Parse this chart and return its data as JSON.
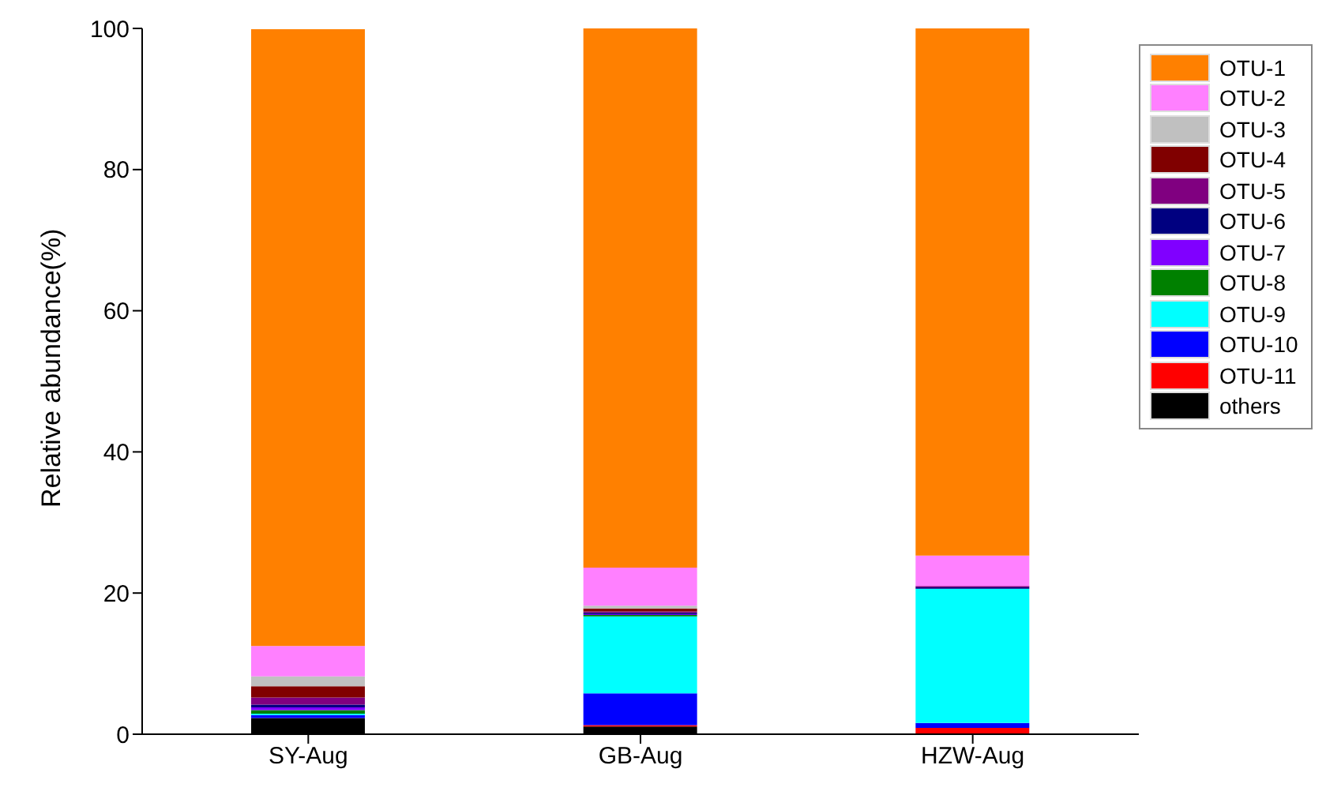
{
  "chart_data": {
    "type": "bar",
    "stacked": true,
    "ylabel": "Relative abundance(%)",
    "categories": [
      "SY-Aug",
      "GB-Aug",
      "HZW-Aug"
    ],
    "ylim": [
      0,
      100
    ],
    "yticks": [
      0,
      20,
      40,
      60,
      80,
      100
    ],
    "legend": "right",
    "series": [
      {
        "name": "others",
        "color": "#000000",
        "values": [
          2.3,
          1.1,
          0.1
        ]
      },
      {
        "name": "OTU-11",
        "color": "#ff0000",
        "values": [
          null,
          0.2,
          0.8
        ]
      },
      {
        "name": "OTU-10",
        "color": "#0000ff",
        "values": [
          0.4,
          4.5,
          0.7
        ]
      },
      {
        "name": "OTU-9",
        "color": "#00ffff",
        "values": [
          0.2,
          10.9,
          19.0
        ]
      },
      {
        "name": "OTU-8",
        "color": "#008000",
        "values": [
          0.5,
          0.2,
          0
        ]
      },
      {
        "name": "OTU-7",
        "color": "#8000ff",
        "values": [
          0.4,
          0.1,
          0
        ]
      },
      {
        "name": "OTU-6",
        "color": "#000080",
        "values": [
          0.4,
          0.2,
          0.2
        ]
      },
      {
        "name": "OTU-5",
        "color": "#800080",
        "values": [
          1.0,
          0.2,
          0.2
        ]
      },
      {
        "name": "OTU-4",
        "color": "#800000",
        "values": [
          1.6,
          0.4,
          0
        ]
      },
      {
        "name": "OTU-3",
        "color": "#c0c0c0",
        "values": [
          1.4,
          0.4,
          0
        ]
      },
      {
        "name": "OTU-2",
        "color": "#ff80ff",
        "values": [
          4.3,
          5.4,
          4.3
        ]
      },
      {
        "name": "OTU-1",
        "color": "#ff8000",
        "values": [
          87.4,
          76.4,
          74.7
        ]
      }
    ]
  }
}
